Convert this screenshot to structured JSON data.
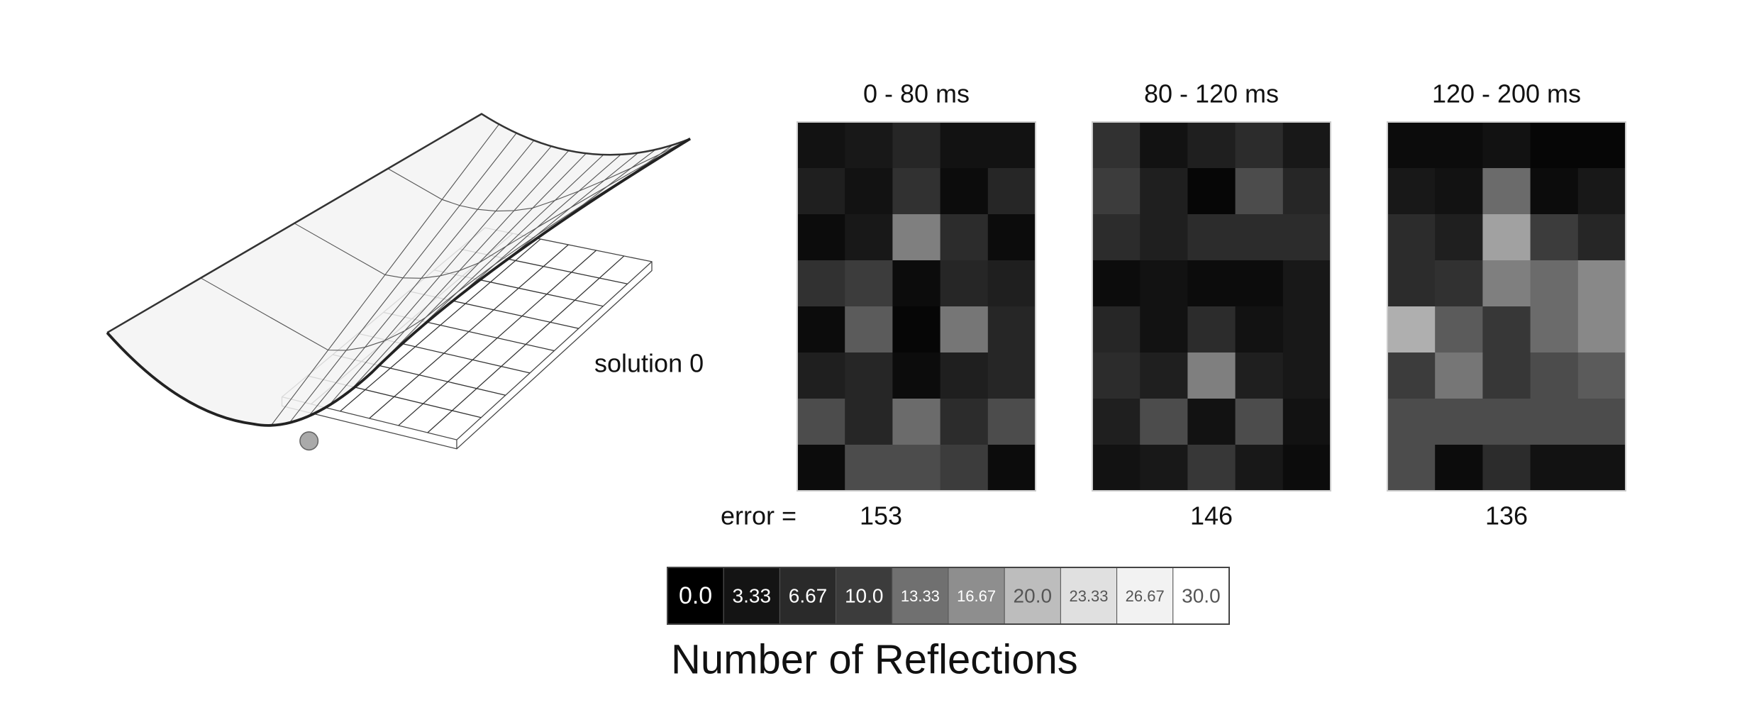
{
  "diagram": {
    "label": "solution 0"
  },
  "error_label": "error =",
  "chart_data": [
    {
      "type": "heatmap",
      "title": "0 - 80 ms",
      "error": 153,
      "values": [
        [
          3,
          4,
          6,
          3,
          3
        ],
        [
          5,
          3,
          8,
          2,
          6
        ],
        [
          2,
          4,
          15,
          7,
          2
        ],
        [
          8,
          10,
          2,
          6,
          5
        ],
        [
          2,
          12,
          1,
          14,
          6
        ],
        [
          5,
          6,
          2,
          5,
          6
        ],
        [
          11,
          6,
          13,
          7,
          11
        ],
        [
          2,
          11,
          11,
          10,
          2
        ]
      ]
    },
    {
      "type": "heatmap",
      "title": "80 - 120 ms",
      "error": 146,
      "values": [
        [
          8,
          3,
          5,
          7,
          4
        ],
        [
          10,
          5,
          1,
          11,
          6
        ],
        [
          7,
          5,
          7,
          7,
          7
        ],
        [
          2,
          3,
          2,
          2,
          4
        ],
        [
          6,
          3,
          7,
          3,
          4
        ],
        [
          7,
          5,
          15,
          5,
          4
        ],
        [
          5,
          11,
          3,
          11,
          3
        ],
        [
          3,
          4,
          9,
          4,
          2
        ]
      ]
    },
    {
      "type": "heatmap",
      "title": "120 - 200 ms",
      "error": 136,
      "values": [
        [
          2,
          2,
          3,
          1,
          1
        ],
        [
          4,
          3,
          13,
          2,
          4
        ],
        [
          7,
          5,
          18,
          10,
          6
        ],
        [
          7,
          8,
          15,
          13,
          16
        ],
        [
          19,
          12,
          9,
          13,
          16
        ],
        [
          10,
          14,
          9,
          11,
          12
        ],
        [
          11,
          11,
          11,
          11,
          11
        ],
        [
          11,
          2,
          7,
          3,
          3
        ]
      ]
    }
  ],
  "colorbar": {
    "title": "Number of Reflections",
    "ticks": [
      {
        "value": 0,
        "label": "0.0"
      },
      {
        "value": 3.33,
        "label": "3.33"
      },
      {
        "value": 6.67,
        "label": "6.67"
      },
      {
        "value": 10,
        "label": "10.0"
      },
      {
        "value": 13.33,
        "label": "13.33"
      },
      {
        "value": 16.67,
        "label": "16.67"
      },
      {
        "value": 20,
        "label": "20.0"
      },
      {
        "value": 23.33,
        "label": "23.33"
      },
      {
        "value": 26.67,
        "label": "26.67"
      },
      {
        "value": 30,
        "label": "30.0"
      }
    ],
    "colors": [
      "#000000",
      "#141414",
      "#2a2a2a",
      "#3c3c3c",
      "#707070",
      "#8e8e8e",
      "#bdbdbd",
      "#e0e0e0",
      "#f2f2f2",
      "#ffffff"
    ]
  }
}
